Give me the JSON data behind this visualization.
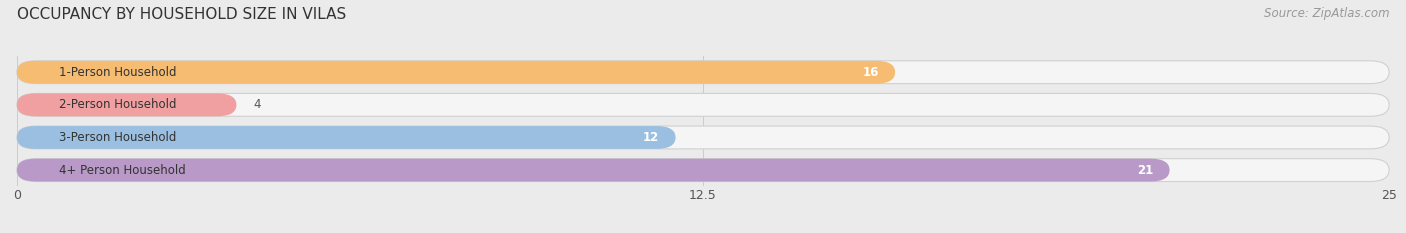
{
  "title": "OCCUPANCY BY HOUSEHOLD SIZE IN VILAS",
  "source": "Source: ZipAtlas.com",
  "categories": [
    "1-Person Household",
    "2-Person Household",
    "3-Person Household",
    "4+ Person Household"
  ],
  "values": [
    16,
    4,
    12,
    21
  ],
  "bar_colors": [
    "#F5BC72",
    "#F0A0A0",
    "#9BBFE0",
    "#B899C8"
  ],
  "xlim": [
    0,
    25
  ],
  "xticks": [
    0,
    12.5,
    25
  ],
  "xtick_labels": [
    "0",
    "12.5",
    "25"
  ],
  "title_fontsize": 11,
  "source_fontsize": 8.5,
  "bar_label_fontsize": 8.5,
  "category_fontsize": 8.5,
  "background_color": "#ebebeb",
  "bar_bg_color": "#f5f5f5",
  "grid_color": "#cccccc"
}
